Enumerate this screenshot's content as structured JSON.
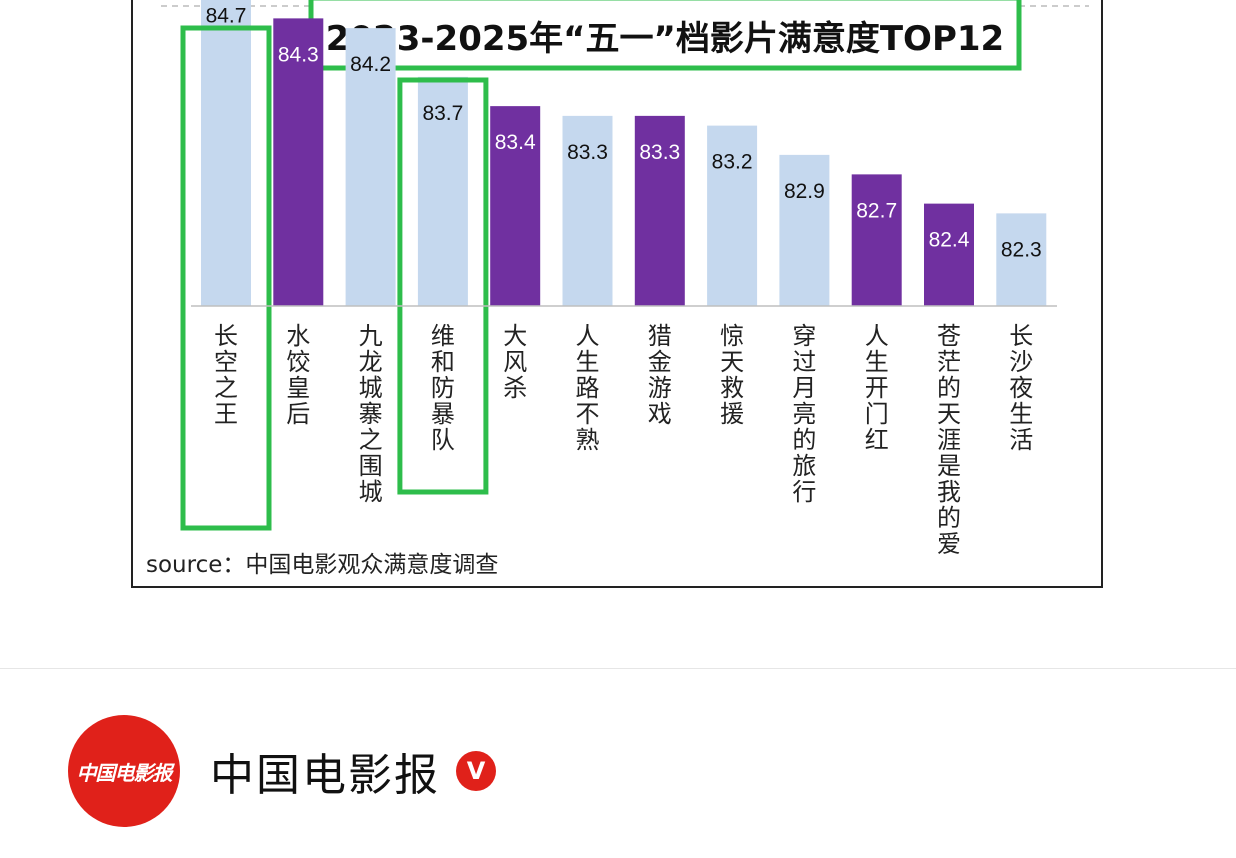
{
  "chart_data": {
    "type": "bar",
    "title": "2023-2025年“五一”档影片满意度TOP12",
    "source": "source：中国电影观众满意度调查",
    "categories": [
      "长空之王",
      "水饺皇后",
      "九龙城寨之围城",
      "维和防暴队",
      "大风杀",
      "人生路不熟",
      "猎金·游戏",
      "惊天救援",
      "穿过月亮的旅行",
      "人生开门红",
      "苍茫的天涯是我的爱",
      "长沙夜生活"
    ],
    "values": [
      84.7,
      84.3,
      84.2,
      83.7,
      83.4,
      83.3,
      83.3,
      83.2,
      82.9,
      82.7,
      82.4,
      82.3
    ],
    "value_labels": [
      "84.7",
      "84.3",
      "84.2",
      "83.7",
      "83.4",
      "83.3",
      "83.3",
      "83.2",
      "82.9",
      "82.7",
      "82.4",
      "82.3"
    ],
    "bar_colors": [
      "#c5d8ee",
      "#7030a0",
      "#c5d8ee",
      "#c5d8ee",
      "#7030a0",
      "#c5d8ee",
      "#7030a0",
      "#c5d8ee",
      "#c5d8ee",
      "#7030a0",
      "#7030a0",
      "#c5d8ee"
    ],
    "highlighted": [
      "长空之王",
      "维和防暴队"
    ],
    "highlight_color": "#2ebd4b",
    "grid": false
  },
  "account": {
    "avatar_text": "中国电影报",
    "name": "中国电影报",
    "badge": "V"
  }
}
